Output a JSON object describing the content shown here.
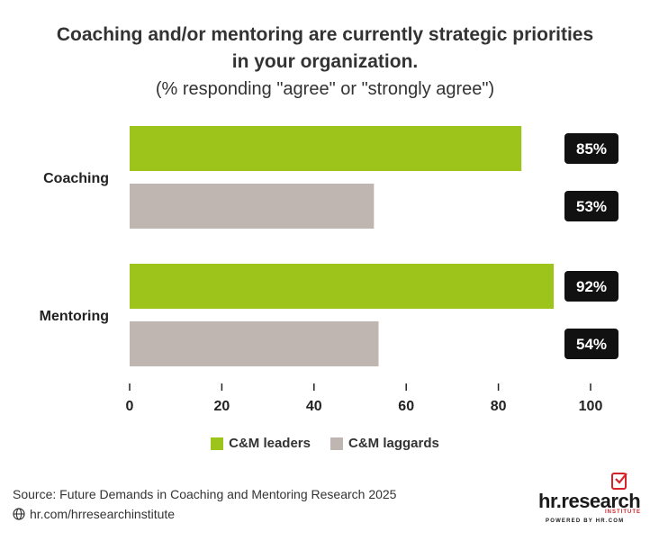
{
  "title_line1": "Coaching and/or mentoring are currently strategic priorities",
  "title_line2": "in your organization.",
  "subtitle": "(% responding \"agree\" or \"strongly agree\")",
  "colors": {
    "leaders": "#9dc41a",
    "laggards": "#bfb5b1",
    "label_bg": "#111111"
  },
  "chart_data": {
    "type": "bar",
    "orientation": "horizontal",
    "title": "Coaching and/or mentoring are currently strategic priorities in your organization.",
    "subtitle": "(% responding \"agree\" or \"strongly agree\")",
    "categories": [
      "Coaching",
      "Mentoring"
    ],
    "series": [
      {
        "name": "C&M leaders",
        "values": [
          85,
          92
        ]
      },
      {
        "name": "C&M laggards",
        "values": [
          53,
          54
        ]
      }
    ],
    "value_suffix": "%",
    "xlim": [
      0,
      100
    ],
    "xticks": [
      0,
      20,
      40,
      60,
      80,
      100
    ],
    "grid": false,
    "legend": "bottom-center"
  },
  "source": "Source:  Future Demands in Coaching and Mentoring Research 2025",
  "link": "hr.com/hrresearchinstitute",
  "logo": {
    "name": "hr.research",
    "sub": "INSTITUTE",
    "powered": "POWERED BY HR.COM"
  }
}
